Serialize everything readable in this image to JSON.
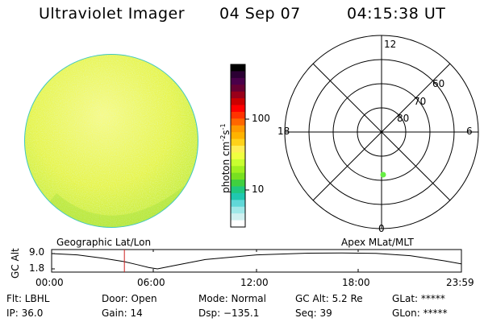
{
  "header": {
    "title": "Ultraviolet Imager",
    "date": "04 Sep 07",
    "time": "04:15:38 UT"
  },
  "colorbar": {
    "label_main": "photon cm",
    "label_exp1": "-2",
    "label_mid": "s",
    "label_exp2": "-1",
    "ticks": [
      "100",
      "10"
    ],
    "colors": [
      "#000000",
      "#2b0033",
      "#4a004a",
      "#660033",
      "#99001a",
      "#cc0000",
      "#ff0000",
      "#ff3300",
      "#ff6600",
      "#ff9900",
      "#ffb300",
      "#ffd21a",
      "#ffee55",
      "#f0ff40",
      "#c8ff30",
      "#a0f020",
      "#78e020",
      "#40d040",
      "#20c880",
      "#20c8b0",
      "#60d8d8",
      "#a0e8e8",
      "#d0f0f0",
      "#ffffff"
    ]
  },
  "image_disk": {
    "base_color": "#e8f54a",
    "edge_color": "#40c8c0"
  },
  "polar_plot": {
    "labels": {
      "top": "12",
      "left": "18",
      "right": "6",
      "bottom": "0"
    },
    "ring_labels": [
      "80",
      "70",
      "60"
    ],
    "point_color": "#66ee44"
  },
  "timeline": {
    "y_axis_label": "GC Alt",
    "y_ticks": [
      "9.0",
      "1.8"
    ],
    "left_title": "Geographic Lat/Lon",
    "right_title": "Apex MLat/MLT",
    "x_ticks": [
      "00:00",
      "06:00",
      "12:00",
      "18:00",
      "23:59"
    ],
    "altitude_curve": [
      {
        "t": 0,
        "alt": 9.0
      },
      {
        "t": 1.5,
        "alt": 8.4
      },
      {
        "t": 3.0,
        "alt": 6.8
      },
      {
        "t": 4.25,
        "alt": 5.2
      },
      {
        "t": 5.0,
        "alt": 3.8
      },
      {
        "t": 5.7,
        "alt": 2.4
      },
      {
        "t": 6.2,
        "alt": 1.8
      },
      {
        "t": 7.0,
        "alt": 3.1
      },
      {
        "t": 9.0,
        "alt": 6.2
      },
      {
        "t": 12.0,
        "alt": 8.4
      },
      {
        "t": 15.0,
        "alt": 9.2
      },
      {
        "t": 17.0,
        "alt": 9.3
      },
      {
        "t": 19.0,
        "alt": 9.1
      },
      {
        "t": 21.0,
        "alt": 8.0
      },
      {
        "t": 23.0,
        "alt": 5.6
      },
      {
        "t": 23.98,
        "alt": 4.2
      }
    ],
    "marker_time": 4.26,
    "marker_color": "#cc2222"
  },
  "status": {
    "flt": "Flt: LBHL",
    "door": "Door: Open",
    "mode": "Mode: Normal",
    "gc_alt": "GC Alt: 5.2 Re",
    "glat": "GLat: *****",
    "ip": "IP: 36.0",
    "gain": "Gain: 14",
    "dsp": "Dsp: −135.1",
    "seq": "Seq: 39",
    "glon": "GLon: *****"
  }
}
